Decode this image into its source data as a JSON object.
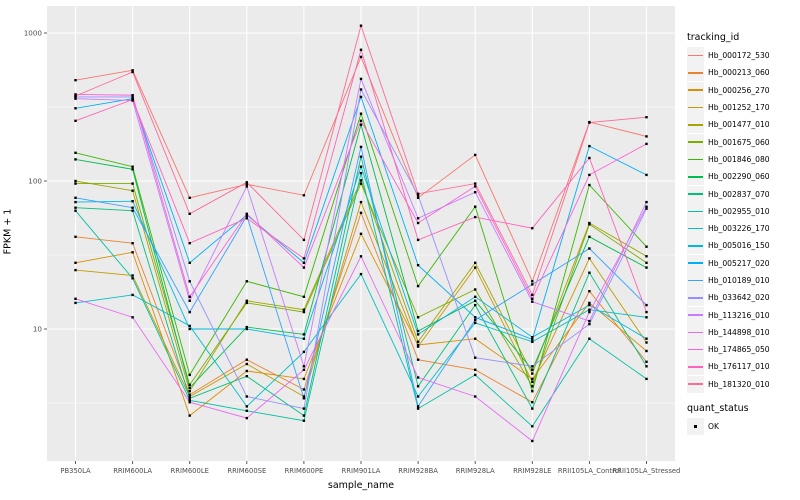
{
  "chart_data": {
    "type": "line",
    "title": "",
    "xlabel": "sample_name",
    "ylabel": "FPKM + 1",
    "y_scale": "log10",
    "yticks": [
      10,
      100,
      1000
    ],
    "y_minor_ticks": [
      3.162,
      31.62,
      316.2
    ],
    "ylim": [
      1.3,
      1550
    ],
    "grid": "on",
    "panel_bg": "#EBEBEB",
    "grid_color": "#FFFFFF",
    "tick_label_color": "#4D4D4D",
    "point_color": "#000000",
    "categories": [
      "PB350LA",
      "RRIM600LA",
      "RRIM600LE",
      "RRIM600SE",
      "RRIM600PE",
      "RRIM901LA",
      "RRIM928BA",
      "RRIM928LA",
      "RRIM928LE",
      "RRII105LA_Control",
      "RRII105LA_Stressed"
    ],
    "legend": {
      "title": "tracking_id",
      "position": "right"
    },
    "quant_status": {
      "title": "quant_status",
      "items": [
        "OK"
      ]
    },
    "series": [
      {
        "name": "Hb_000172_530",
        "color": "#F8766D",
        "values": [
          480,
          560,
          77,
          95,
          80,
          690,
          77,
          150,
          21,
          250,
          200
        ]
      },
      {
        "name": "Hb_000213_060",
        "color": "#EA8331",
        "values": [
          42,
          38,
          3.6,
          6.2,
          3.9,
          61,
          6.2,
          5.3,
          3.2,
          18,
          6.0
        ]
      },
      {
        "name": "Hb_000256_270",
        "color": "#D89000",
        "values": [
          28,
          33,
          2.6,
          5.2,
          4.6,
          44,
          7.8,
          8.6,
          4.6,
          15,
          7.1
        ]
      },
      {
        "name": "Hb_001252_170",
        "color": "#C09B00",
        "values": [
          25,
          23,
          3.5,
          5.8,
          3.5,
          72,
          7.6,
          26,
          4.4,
          30,
          8.1
        ]
      },
      {
        "name": "Hb_001477_010",
        "color": "#A3A500",
        "values": [
          100,
          86,
          3.8,
          15.5,
          13.5,
          101,
          8.2,
          28,
          5.0,
          52,
          31
        ]
      },
      {
        "name": "Hb_001675_060",
        "color": "#7CAE00",
        "values": [
          96,
          96,
          4.2,
          15,
          13,
          96,
          12,
          18.5,
          4.1,
          51,
          28
        ]
      },
      {
        "name": "Hb_001846_080",
        "color": "#39B600",
        "values": [
          155,
          125,
          4.9,
          21,
          16.5,
          285,
          19.5,
          67,
          3.8,
          94,
          36
        ]
      },
      {
        "name": "Hb_002290_060",
        "color": "#00BB4E",
        "values": [
          140,
          120,
          4.0,
          10.3,
          9.2,
          240,
          9.7,
          15.5,
          5.3,
          42,
          26
        ]
      },
      {
        "name": "Hb_002837_070",
        "color": "#00BF7D",
        "values": [
          66,
          63,
          3.4,
          4.8,
          2.6,
          146,
          4.1,
          14.5,
          2.9,
          24,
          5.6
        ]
      },
      {
        "name": "Hb_002955_010",
        "color": "#00C1A3",
        "values": [
          63,
          22,
          3.3,
          2.8,
          2.4,
          113,
          2.9,
          4.9,
          2.2,
          8.6,
          4.6
        ]
      },
      {
        "name": "Hb_003226_170",
        "color": "#00BFC4",
        "values": [
          15,
          17,
          10.5,
          3.0,
          7,
          23.5,
          3.5,
          11,
          8.2,
          13.5,
          12
        ]
      },
      {
        "name": "Hb_005016_150",
        "color": "#00BAE0",
        "values": [
          72,
          73,
          10,
          10,
          8.6,
          125,
          9.2,
          16.5,
          8.8,
          14.5,
          8.6
        ]
      },
      {
        "name": "Hb_005217_020",
        "color": "#00B0F6",
        "values": [
          310,
          360,
          28,
          59,
          28,
          370,
          27,
          12,
          8.5,
          172,
          110
        ]
      },
      {
        "name": "Hb_010189_010",
        "color": "#35A2FF",
        "values": [
          77,
          66,
          13,
          58,
          3.4,
          170,
          3.0,
          11.5,
          20,
          35,
          14.5
        ]
      },
      {
        "name": "Hb_033642_020",
        "color": "#9590FF",
        "values": [
          370,
          370,
          21,
          3.5,
          2.9,
          415,
          80,
          6.4,
          5.6,
          10.8,
          65
        ]
      },
      {
        "name": "Hb_113216_010",
        "color": "#C77CFF",
        "values": [
          360,
          350,
          15.5,
          92,
          5.6,
          490,
          56,
          84,
          15.3,
          11.3,
          72
        ]
      },
      {
        "name": "Hb_144898_010",
        "color": "#E76BF3",
        "values": [
          16,
          12,
          3.2,
          2.5,
          5.3,
          31,
          4.7,
          3.5,
          1.75,
          13,
          67
        ]
      },
      {
        "name": "Hb_174865_050",
        "color": "#FA62DB",
        "values": [
          385,
          380,
          16.5,
          60,
          26,
          255,
          52,
          92,
          16,
          110,
          178
        ]
      },
      {
        "name": "Hb_176117_010",
        "color": "#FF62BC",
        "values": [
          255,
          355,
          38,
          56,
          30,
          770,
          40,
          57,
          48,
          143,
          13
        ]
      },
      {
        "name": "Hb_181320_010",
        "color": "#FF6A98",
        "values": [
          375,
          545,
          60,
          98,
          40,
          1120,
          82,
          96,
          17,
          248,
          270
        ]
      }
    ]
  }
}
